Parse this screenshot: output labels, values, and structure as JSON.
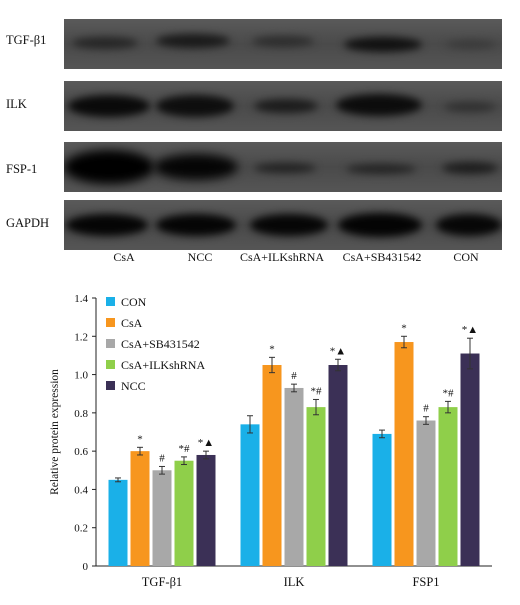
{
  "blot": {
    "rows": [
      {
        "label": "TGF-β1"
      },
      {
        "label": "ILK"
      },
      {
        "label": "FSP-1"
      },
      {
        "label": "GAPDH"
      }
    ],
    "lanes": [
      "CsA",
      "NCC",
      "CsA+ILKshRNA",
      "CsA+SB431542",
      "CON"
    ]
  },
  "chart_data": {
    "type": "bar",
    "ylabel": "Relative protein expression",
    "ylim": [
      0,
      1.4
    ],
    "yticks": [
      "0",
      "0.2",
      "0.4",
      "0.6",
      "0.8",
      "1.0",
      "1.2",
      "1.4"
    ],
    "categories": [
      "TGF-β1",
      "ILK",
      "FSP1"
    ],
    "legend_position": "top-left",
    "series": [
      {
        "name": "CON",
        "color": "#1ab0e8",
        "values": [
          0.45,
          0.74,
          0.69
        ],
        "errors": [
          0.01,
          0.045,
          0.02
        ],
        "marks": [
          "",
          "",
          ""
        ]
      },
      {
        "name": "CsA",
        "color": "#f7961e",
        "values": [
          0.6,
          1.05,
          1.17
        ],
        "errors": [
          0.02,
          0.04,
          0.03
        ],
        "marks": [
          "*",
          "*",
          "*"
        ]
      },
      {
        "name": "CsA+SB431542",
        "color": "#a8a8a8",
        "values": [
          0.5,
          0.93,
          0.76
        ],
        "errors": [
          0.02,
          0.02,
          0.02
        ],
        "marks": [
          "#",
          "#",
          "#"
        ]
      },
      {
        "name": "CsA+ILKshRNA",
        "color": "#8fcf4a",
        "values": [
          0.55,
          0.83,
          0.83
        ],
        "errors": [
          0.02,
          0.04,
          0.03
        ],
        "marks": [
          "*#",
          "*#",
          "*#"
        ]
      },
      {
        "name": "NCC",
        "color": "#3b3056",
        "values": [
          0.58,
          1.05,
          1.11
        ],
        "errors": [
          0.02,
          0.03,
          0.08
        ],
        "marks": [
          "*▲",
          "*▲",
          "*▲"
        ]
      }
    ]
  }
}
